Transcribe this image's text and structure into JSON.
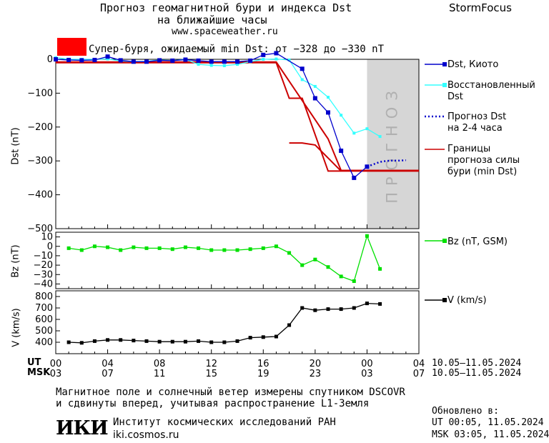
{
  "header": {
    "title_line1": "Прогноз геомагнитной бури и индекса Dst",
    "title_line2": "на ближайшие часы",
    "url": "www.spaceweather.ru",
    "brand": "StormFocus"
  },
  "alert": {
    "color": "#ff0000",
    "text": "Супер-буря, ожидаемый min Dst: от −328 до −330 nT"
  },
  "colors": {
    "dst_kyoto": "#0000cc",
    "dst_reconstructed": "#33ffff",
    "dst_forecast": "#0000cc",
    "storm_bounds": "#cc0000",
    "bz": "#00e000",
    "speed": "#000000",
    "forecast_band": "#d6d6d6"
  },
  "legend": {
    "dst_kyoto": "Dst, Киото",
    "dst_recon": [
      "Восстановленный",
      "Dst"
    ],
    "dst_forecast": [
      "Прогноз Dst",
      "на 2-4 часа"
    ],
    "bounds": [
      "Границы",
      "прогноза силы",
      "бури (min Dst)"
    ],
    "bz": "Bz (nT, GSM)",
    "v": "V (km/s)"
  },
  "forecast_band_label": "ПРОГНОЗ",
  "footer": {
    "line1": "Магнитное поле и солнечный ветер измерены спутником DSCOVR",
    "line2": "и сдвинуты вперед, учитывая распространение L1-Земля",
    "logo": "ИКИ",
    "institute": "Институт космических исследований РАН",
    "institute_web": "iki.cosmos.ru",
    "updated_label": "Обновлено в:",
    "updated_ut": "UT  00:05, 11.05.2024",
    "updated_msk": "MSK 03:05, 11.05.2024"
  },
  "chart_data": [
    {
      "type": "line",
      "ylabel": "Dst (nT)",
      "ylim": [
        -500,
        0
      ],
      "yticks": [
        "0",
        "−100",
        "−200",
        "−300",
        "−400",
        "−500"
      ],
      "ytick_values": [
        0,
        -100,
        -200,
        -300,
        -400,
        -500
      ],
      "xlim": [
        0,
        28
      ],
      "forecast_band": [
        24,
        28
      ],
      "series": [
        {
          "name": "Dst, Киото",
          "style": "square",
          "x": [
            0,
            1,
            2,
            3,
            4,
            5,
            6,
            7,
            8,
            9,
            10,
            11,
            12,
            13,
            14,
            15,
            16,
            17,
            19,
            20,
            21,
            22,
            23,
            24
          ],
          "y": [
            0,
            -2,
            -3,
            -2,
            8,
            -3,
            -7,
            -7,
            -3,
            -4,
            -1,
            -4,
            -7,
            -7,
            -7,
            -4,
            13,
            18,
            -28,
            -115,
            -157,
            -270,
            -350,
            -317
          ]
        },
        {
          "name": "Восстановленный Dst",
          "style": "square",
          "x": [
            0,
            1,
            2,
            3,
            4,
            5,
            6,
            7,
            8,
            9,
            10,
            11,
            12,
            13,
            14,
            15,
            16,
            17,
            18,
            19,
            20,
            21,
            22,
            23,
            24,
            25
          ],
          "y": [
            5,
            0,
            0,
            0,
            1,
            -5,
            -7,
            -6,
            -2,
            -4,
            0,
            -15,
            -18,
            -19,
            -15,
            -7,
            0,
            1,
            -2,
            -60,
            -80,
            -112,
            -165,
            -218,
            -205,
            -228
          ]
        },
        {
          "name": "Прогноз Dst на 2-4 часа",
          "style": "dotted",
          "x": [
            24,
            24.5,
            25,
            25.5,
            26,
            26.5,
            27
          ],
          "y": [
            -317,
            -310,
            -303,
            -300,
            -299,
            -299,
            -298
          ]
        },
        {
          "name": "Границы прогноза силы бури (min Dst)",
          "style": "line",
          "x": [
            0,
            17,
            18,
            19,
            21,
            22,
            28
          ],
          "y": [
            -10,
            -10,
            -115,
            -115,
            -330,
            -330,
            -330
          ]
        },
        {
          "name": "Границы прогноза силы бури (min Dst)",
          "style": "line",
          "x": [
            0,
            17,
            21,
            22,
            28
          ],
          "y": [
            -8,
            -8,
            -235,
            -328,
            -328
          ]
        },
        {
          "name": "Границы прогноза силы бури (min Dst)",
          "style": "line",
          "x": [
            18,
            19,
            20,
            22
          ],
          "y": [
            -247,
            -247,
            -253,
            -330
          ]
        }
      ]
    },
    {
      "type": "line",
      "ylabel": "Bz (nT)",
      "ylim": [
        -45,
        15
      ],
      "yticks": [
        "10",
        "0",
        "−10",
        "−20",
        "−30",
        "−40"
      ],
      "ytick_values": [
        10,
        0,
        -10,
        -20,
        -30,
        -40
      ],
      "series": [
        {
          "name": "Bz (nT, GSM)",
          "x": [
            1,
            2,
            3,
            4,
            5,
            6,
            7,
            8,
            9,
            10,
            11,
            12,
            13,
            14,
            15,
            16,
            17,
            18,
            19,
            20,
            21,
            22,
            23,
            24,
            25
          ],
          "y": [
            -2,
            -4,
            0,
            -1,
            -4,
            -1,
            -2,
            -2,
            -3,
            -1,
            -2,
            -4,
            -4,
            -4,
            -3,
            -2,
            0,
            -7,
            -20,
            -14,
            -22,
            -32,
            -37,
            11,
            -24
          ]
        }
      ]
    },
    {
      "type": "line",
      "ylabel": "V (km/s)",
      "ylim": [
        300,
        850
      ],
      "yticks": [
        "400",
        "500",
        "600",
        "700",
        "800"
      ],
      "ytick_values": [
        400,
        500,
        600,
        700,
        800
      ],
      "series": [
        {
          "name": "V (km/s)",
          "x": [
            1,
            2,
            3,
            4,
            5,
            6,
            7,
            8,
            9,
            10,
            11,
            12,
            13,
            14,
            15,
            16,
            17,
            18,
            19,
            20,
            21,
            22,
            23,
            24,
            25
          ],
          "y": [
            400,
            395,
            410,
            420,
            420,
            415,
            410,
            405,
            405,
            405,
            410,
            400,
            400,
            410,
            440,
            445,
            450,
            550,
            700,
            680,
            690,
            690,
            700,
            740,
            735
          ]
        }
      ]
    }
  ],
  "x_axis": {
    "ut_label": "UT",
    "msk_label": "MSK",
    "ut_ticks": [
      "00",
      "04",
      "08",
      "12",
      "16",
      "20",
      "00",
      "04"
    ],
    "msk_ticks": [
      "03",
      "07",
      "11",
      "15",
      "19",
      "23",
      "03",
      "07"
    ],
    "date_range_ut": "10.05–11.05.2024",
    "date_range_msk": "10.05–11.05.2024"
  }
}
